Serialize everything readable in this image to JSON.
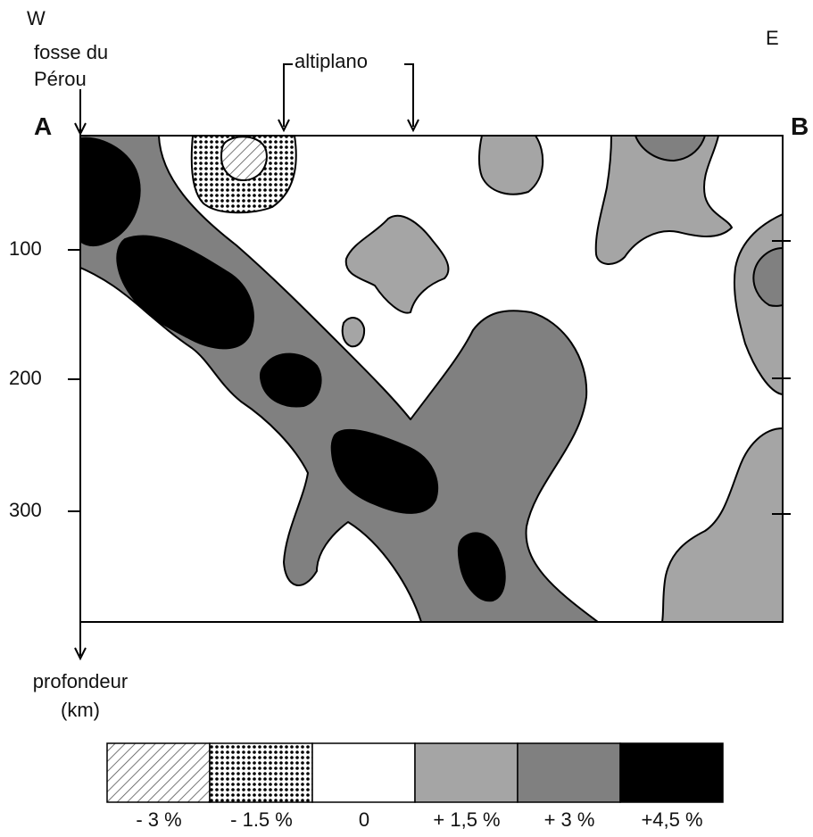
{
  "labels": {
    "west": "W",
    "east": "E",
    "trench": "fosse du\nPérou",
    "altiplano": "altiplano",
    "point_a": "A",
    "point_b": "B",
    "depth_axis": "profondeur\n(km)"
  },
  "depth_ticks": [
    "100",
    "200",
    "300"
  ],
  "legend": [
    {
      "label": "- 3 %",
      "fill": "hatch",
      "color": "#ffffff"
    },
    {
      "label": "- 1.5 %",
      "fill": "dots",
      "color": "#000000"
    },
    {
      "label": "0",
      "fill": "solid",
      "color": "#ffffff"
    },
    {
      "label": "+ 1,5 %",
      "fill": "solid",
      "color": "#a5a5a5"
    },
    {
      "label": "+ 3 %",
      "fill": "solid",
      "color": "#808080"
    },
    {
      "label": "+4,5 %",
      "fill": "solid",
      "color": "#000000"
    }
  ],
  "colors": {
    "light_gray": "#a5a5a5",
    "mid_gray": "#808080",
    "black": "#000000",
    "white": "#ffffff"
  }
}
